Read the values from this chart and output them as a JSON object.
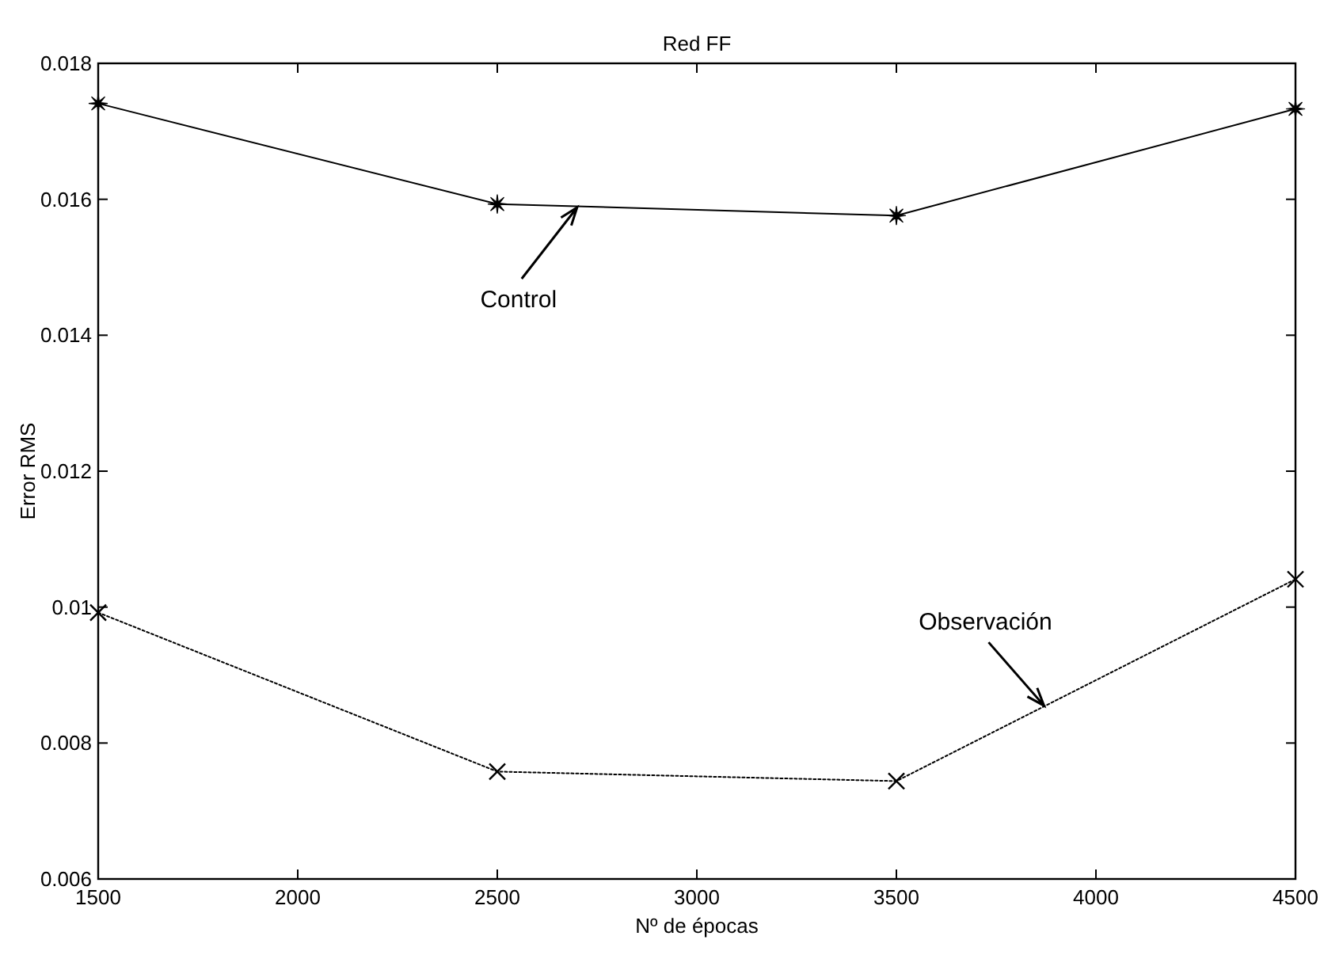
{
  "chart_data": {
    "type": "line",
    "title": "Red FF",
    "xlabel": "Nº de épocas",
    "ylabel": "Error RMS",
    "x": [
      1500,
      2500,
      3500,
      4500
    ],
    "series": [
      {
        "color": "#000000",
        "marker": "star",
        "line_style": "solid",
        "values": [
          0.01741,
          0.01593,
          0.01576,
          0.01733
        ]
      },
      {
        "color": "#000000",
        "marker": "cross",
        "line_style": "dotted",
        "values": [
          0.00992,
          0.00758,
          0.00744,
          0.01041
        ]
      }
    ],
    "xlim": [
      1500,
      4500
    ],
    "xticks": [
      1500,
      2000,
      2500,
      3000,
      3500,
      4000,
      4500
    ],
    "ylim": [
      0.006,
      0.018
    ],
    "yticks": [
      {
        "value": 0.006,
        "label": "0.006"
      },
      {
        "value": 0.008,
        "label": "0.008"
      },
      {
        "value": 0.01,
        "label": "0.01"
      },
      {
        "value": 0.012,
        "label": "0.012"
      },
      {
        "value": 0.014,
        "label": "0.014"
      },
      {
        "value": 0.016,
        "label": "0.016"
      },
      {
        "value": 0.018,
        "label": "0.018"
      }
    ],
    "grid": false,
    "annotations": [
      {
        "text": "Control",
        "x": 2700,
        "y": 0.01588
      },
      {
        "text": "Observación",
        "x": 3870,
        "y": 0.00855
      }
    ]
  }
}
